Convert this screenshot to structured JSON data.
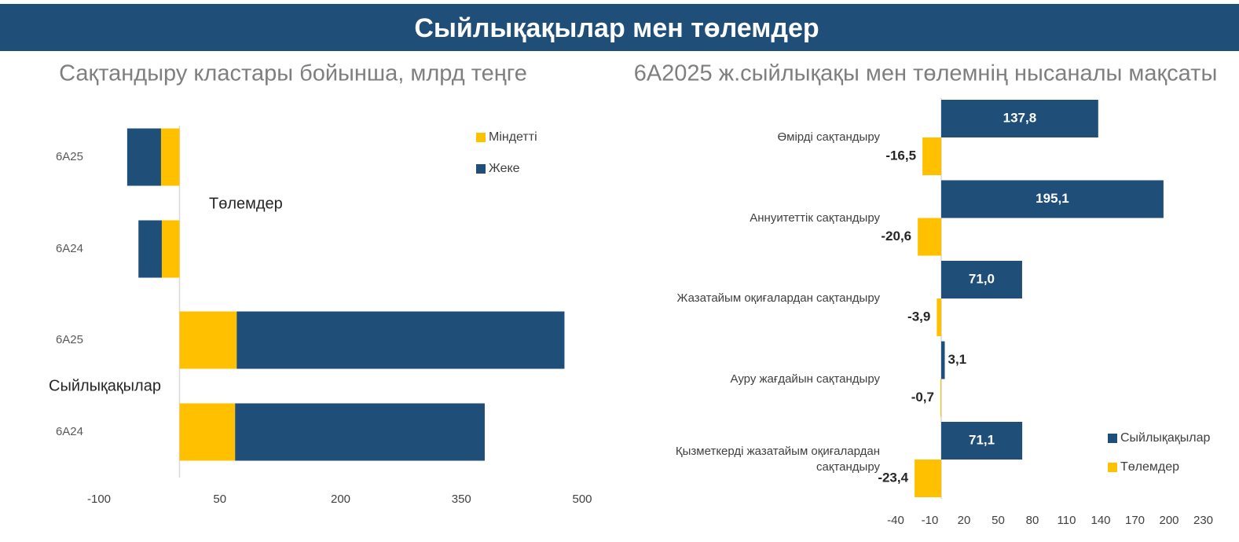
{
  "header": {
    "title": "Сыйлықақылар мен төлемдер"
  },
  "chart_data": [
    {
      "type": "bar",
      "orientation": "horizontal",
      "stacked": true,
      "title": "Сақтандыру кластары бойынша, млрд теңге",
      "categories": [
        "6А25",
        "6А24",
        "6А25",
        "6А24"
      ],
      "group_labels": [
        "Төлемдер",
        "Сыйлықақылар"
      ],
      "series": [
        {
          "name": "Міндетті",
          "color": "#ffc000",
          "values": [
            -23,
            -22,
            71,
            69
          ]
        },
        {
          "name": "Жеке",
          "color": "#1f4e79",
          "values": [
            -42,
            -29,
            407,
            310
          ]
        }
      ],
      "xlim": [
        -100,
        500
      ],
      "xticks": [
        -100,
        50,
        200,
        350,
        500
      ],
      "legend": "upper right"
    },
    {
      "type": "bar",
      "orientation": "horizontal",
      "stacked": false,
      "title": "6А2025 ж.сыйлықақы мен төлемнің нысаналы мақсаты",
      "categories": [
        "Өмірді сақтандыру",
        "Аннуитеттік сақтандыру",
        "Жазатайым оқиғалардан сақтандыру",
        "Ауру жағдайын сақтандыру",
        "Қызметкерді жазатайым оқиғалардан сақтандыру"
      ],
      "series": [
        {
          "name": "Сыйлықақылар",
          "color": "#1f4e79",
          "values": [
            137.8,
            195.1,
            71.0,
            3.1,
            71.1
          ],
          "value_labels": [
            "137,8",
            "195,1",
            "71,0",
            "3,1",
            "71,1"
          ]
        },
        {
          "name": "Төлемдер",
          "color": "#ffc000",
          "values": [
            -16.5,
            -20.6,
            -3.9,
            -0.7,
            -23.4
          ],
          "value_labels": [
            "-16,5",
            "-20,6",
            "-3,9",
            "-0,7",
            "-23,4"
          ]
        }
      ],
      "xlim": [
        -40,
        230
      ],
      "xticks": [
        -40,
        -10,
        20,
        50,
        80,
        110,
        140,
        170,
        200,
        230
      ],
      "legend": "lower right"
    }
  ]
}
